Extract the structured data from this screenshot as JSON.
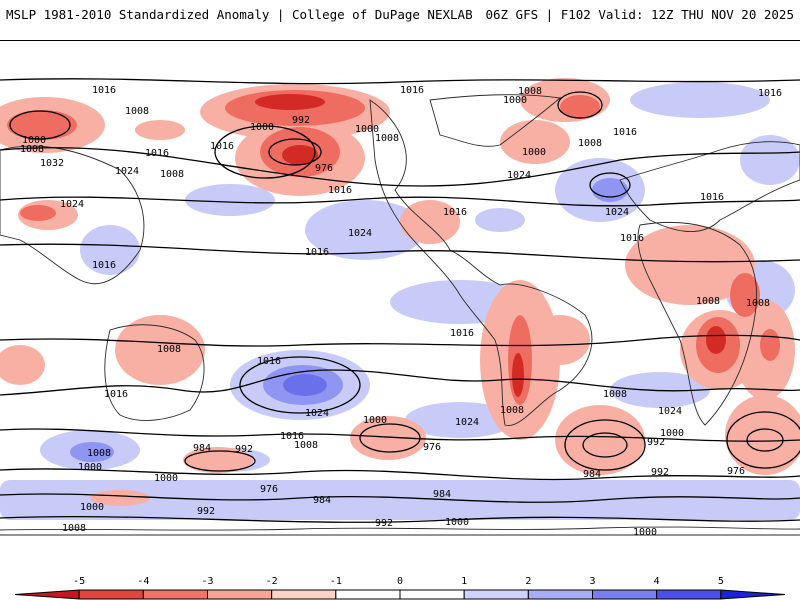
{
  "header": {
    "left_title": "MSLP 1981-2010 Standardized Anomaly | College of DuPage NEXLAB",
    "right_title": "06Z GFS | F102 Valid: 12Z THU NOV 20 2025"
  },
  "contour_labels": [
    "1016",
    "1008",
    "1000",
    "1008",
    "1032",
    "1024",
    "1008",
    "1024",
    "1016",
    "992",
    "1000",
    "1016",
    "1000",
    "976",
    "1016",
    "1008",
    "1008",
    "1000",
    "1016",
    "1024",
    "1008",
    "1016",
    "1000",
    "1024",
    "1016",
    "1016",
    "1024",
    "1016",
    "1016",
    "1008",
    "1008",
    "1016",
    "1016",
    "1016",
    "1008",
    "1016",
    "1016",
    "1024",
    "1008",
    "1024",
    "1016",
    "1008",
    "1000",
    "976",
    "1024",
    "1008",
    "1000",
    "984",
    "992",
    "1008",
    "1000",
    "992",
    "984",
    "976",
    "992",
    "984",
    "992",
    "1000",
    "976",
    "984",
    "1000",
    "992",
    "1000",
    "1000",
    "1008"
  ],
  "colorbar": {
    "tick_labels": [
      "-5",
      "-4",
      "-3",
      "-2",
      "-1",
      "0",
      "1",
      "2",
      "3",
      "4",
      "5"
    ],
    "colors": [
      "#c8141e",
      "#e0453c",
      "#f07468",
      "#f8a496",
      "#fbd2c8",
      "#ffffff",
      "#ffffff",
      "#cfd2fb",
      "#a8aef5",
      "#7a7ff0",
      "#4a50e8",
      "#1c22d8"
    ]
  }
}
